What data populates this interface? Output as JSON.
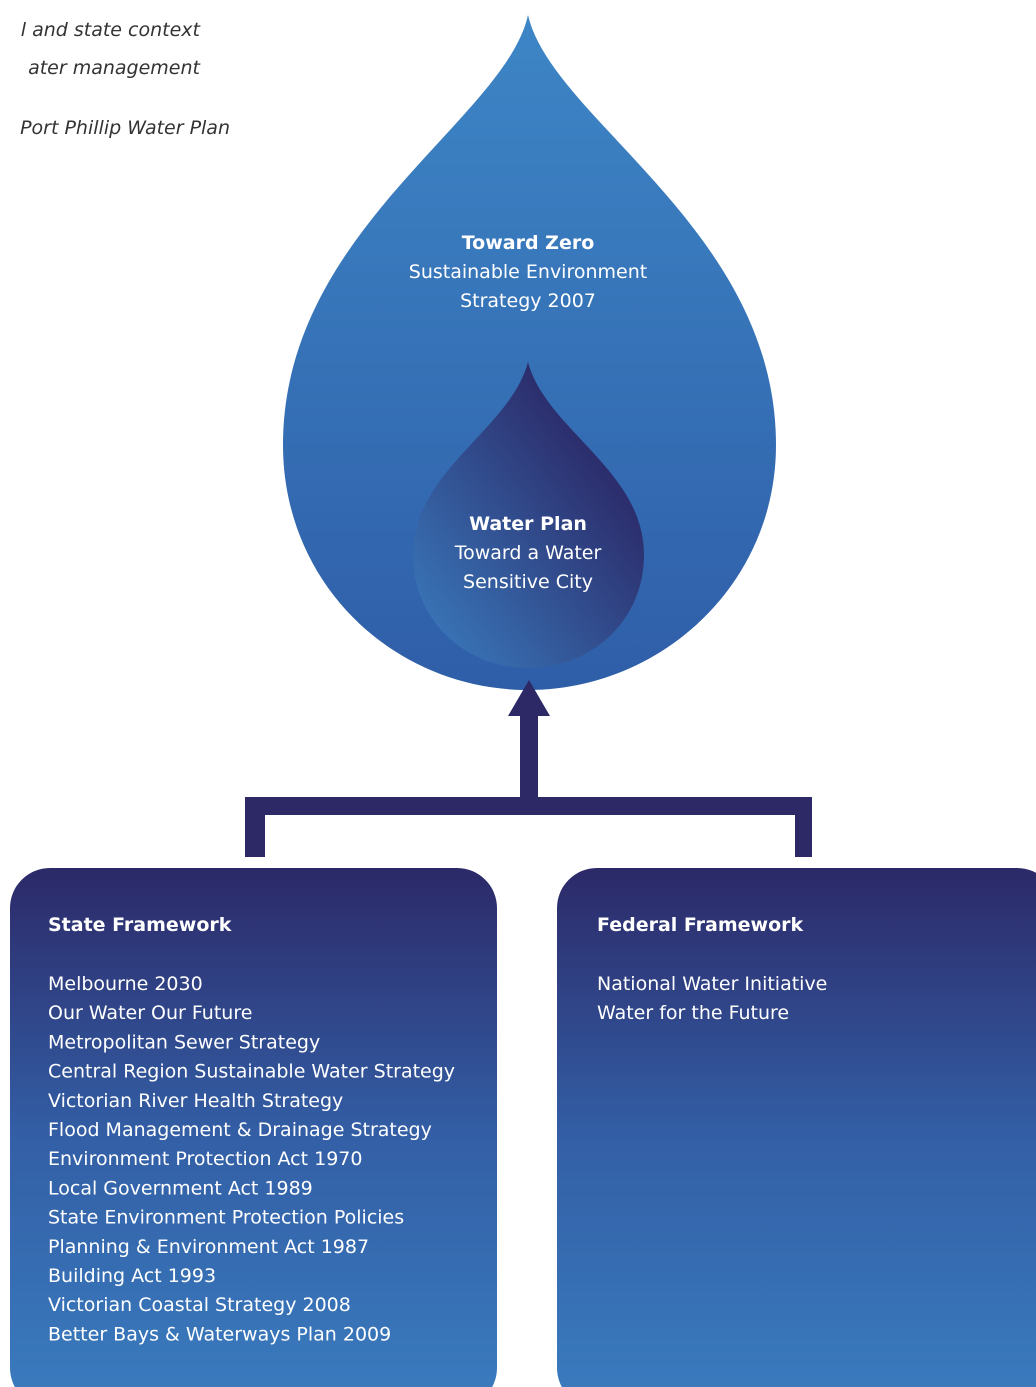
{
  "caption": [
    "l and state context",
    "ater management",
    "Port Phillip Water Plan"
  ],
  "outer_drop": {
    "title": "Toward Zero",
    "lines": [
      "Sustainable Environment",
      "Strategy 2007"
    ]
  },
  "inner_drop": {
    "title": "Water Plan",
    "lines": [
      "Toward a Water",
      "Sensitive City"
    ]
  },
  "boxes": [
    {
      "title": "State Framework",
      "items": [
        "Melbourne 2030",
        "Our Water Our Future",
        "Metropolitan Sewer Strategy",
        "Central Region Sustainable Water Strategy",
        "Victorian River Health Strategy",
        "Flood Management & Drainage Strategy",
        "Environment Protection Act 1970",
        "Local Government Act 1989",
        "State Environment Protection Policies",
        "Planning & Environment Act 1987",
        "Building Act 1993",
        "Victorian Coastal Strategy 2008",
        "Better Bays & Waterways Plan 2009"
      ]
    },
    {
      "title": "Federal Framework",
      "items": [
        "National Water Initiative",
        "Water for the Future"
      ]
    }
  ]
}
